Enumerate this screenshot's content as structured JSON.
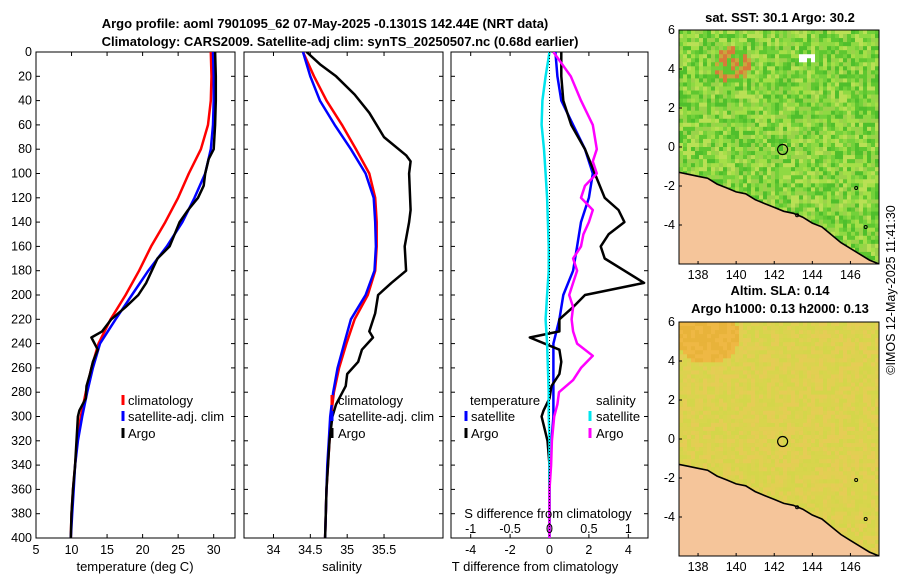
{
  "title_line1": "Argo profile: aoml 7901095_62 07-May-2025 -0.1301S 142.44E (NRT data)",
  "title_line2": "Climatology: CARS2009. Satellite-adj clim: synTS_20250507.nc (0.68d earlier)",
  "timestamp": "©IMOS 12-May-2025 11:41:30",
  "colors": {
    "climatology": "#ff0000",
    "satellite": "#0000ff",
    "argo": "#000000",
    "s_sat": "#00e5ee",
    "s_argo": "#ff00ff",
    "land": "#f5c59a"
  },
  "chart_data": [
    {
      "type": "line",
      "id": "temp",
      "xlabel": "temperature (deg C)",
      "ylabel": "",
      "xlim": [
        5,
        33
      ],
      "ylim": [
        0,
        400
      ],
      "xticks": [
        "5",
        "10",
        "15",
        "20",
        "25",
        "30"
      ],
      "yticks": [
        "0",
        "20",
        "40",
        "60",
        "80",
        "100",
        "120",
        "140",
        "160",
        "180",
        "200",
        "220",
        "240",
        "260",
        "280",
        "300",
        "320",
        "340",
        "360",
        "380",
        "400"
      ],
      "series": [
        {
          "name": "climatology",
          "color": "#ff0000",
          "depth": [
            0,
            20,
            40,
            60,
            80,
            100,
            120,
            140,
            160,
            180,
            200,
            220,
            240,
            260,
            280,
            300,
            320,
            340,
            360,
            380,
            400
          ],
          "values": [
            29.6,
            29.7,
            29.6,
            29.2,
            28.2,
            26.5,
            25.0,
            23.2,
            21.2,
            19.5,
            17.6,
            15.5,
            13.8,
            12.8,
            12.0,
            11.3,
            10.8,
            10.5,
            10.2,
            10.0,
            9.9
          ]
        },
        {
          "name": "satellite-adj. clim",
          "color": "#0000ff",
          "depth": [
            0,
            20,
            40,
            60,
            80,
            100,
            120,
            140,
            160,
            180,
            200,
            220,
            240,
            260,
            280,
            300,
            320,
            340,
            360,
            380,
            400
          ],
          "values": [
            29.9,
            30.0,
            30.0,
            29.9,
            29.6,
            28.8,
            27.3,
            25.6,
            23.4,
            20.8,
            18.5,
            16.2,
            14.0,
            13.0,
            12.2,
            11.5,
            10.9,
            10.5,
            10.3,
            10.1,
            9.9
          ]
        },
        {
          "name": "Argo",
          "color": "#000000",
          "depth": [
            0,
            20,
            40,
            60,
            80,
            88,
            100,
            110,
            120,
            130,
            140,
            150,
            160,
            170,
            180,
            190,
            200,
            210,
            220,
            230,
            235,
            245,
            255,
            265,
            275,
            285,
            295,
            300,
            310,
            320,
            340,
            360,
            380,
            400
          ],
          "values": [
            30.2,
            30.3,
            30.3,
            30.2,
            30.0,
            29.3,
            28.8,
            28.6,
            27.8,
            26.4,
            25.2,
            24.5,
            23.8,
            22.1,
            21.3,
            20.5,
            19.4,
            17.6,
            15.6,
            14.3,
            12.8,
            13.7,
            13.0,
            12.6,
            12.1,
            12.0,
            11.1,
            10.9,
            10.8,
            10.7,
            10.5,
            10.2,
            10.0,
            9.9
          ]
        }
      ],
      "legend": [
        "climatology",
        "satellite-adj. clim",
        "Argo"
      ]
    },
    {
      "type": "line",
      "id": "salt",
      "xlabel": "salinity",
      "xlim": [
        33.6,
        36.3
      ],
      "ylim": [
        0,
        400
      ],
      "xticks": [
        "34",
        "34.5",
        "35",
        "35.5"
      ],
      "series": [
        {
          "name": "climatology",
          "depth": [
            0,
            20,
            40,
            60,
            80,
            100,
            120,
            140,
            160,
            180,
            200,
            220,
            240,
            260,
            280,
            300,
            320,
            340,
            360,
            380,
            400
          ],
          "values": [
            34.4,
            34.55,
            34.72,
            34.93,
            35.12,
            35.3,
            35.38,
            35.4,
            35.4,
            35.38,
            35.28,
            35.1,
            34.99,
            34.89,
            34.82,
            34.78,
            34.76,
            34.74,
            34.72,
            34.71,
            34.7
          ]
        },
        {
          "name": "satellite-adj. clim",
          "depth": [
            0,
            20,
            40,
            60,
            80,
            100,
            120,
            140,
            160,
            180,
            200,
            220,
            240,
            260,
            280,
            300,
            320,
            340,
            360,
            380,
            400
          ],
          "values": [
            34.4,
            34.5,
            34.63,
            34.83,
            35.05,
            35.25,
            35.36,
            35.38,
            35.39,
            35.37,
            35.25,
            35.05,
            34.96,
            34.87,
            34.81,
            34.77,
            34.75,
            34.73,
            34.72,
            34.71,
            34.7
          ]
        },
        {
          "name": "Argo",
          "depth": [
            0,
            10,
            20,
            35,
            50,
            70,
            85,
            90,
            100,
            130,
            140,
            160,
            180,
            190,
            200,
            215,
            230,
            235,
            245,
            255,
            265,
            275,
            290,
            300,
            320,
            340,
            360,
            380,
            400
          ],
          "values": [
            34.45,
            34.63,
            34.85,
            35.1,
            35.3,
            35.5,
            35.8,
            35.86,
            35.84,
            35.86,
            35.84,
            35.78,
            35.8,
            35.6,
            35.42,
            35.38,
            35.3,
            35.35,
            35.2,
            35.15,
            35.0,
            34.98,
            34.85,
            34.8,
            34.76,
            34.74,
            34.72,
            34.71,
            34.7
          ]
        }
      ],
      "legend": [
        "climatology",
        "satellite-adj. clim",
        "Argo"
      ]
    },
    {
      "type": "line",
      "id": "diff",
      "xlabel": "T difference from climatology",
      "xlim": [
        -5,
        5
      ],
      "ylim": [
        0,
        400
      ],
      "xticks": [
        "-4",
        "-2",
        "0",
        "2",
        "4"
      ],
      "top_label": "S difference from climatology",
      "top_ticks": [
        "-1",
        "-0.5",
        "0",
        "0.5",
        "1"
      ],
      "top_tick_values": [
        -1,
        -0.5,
        0,
        0.5,
        1
      ],
      "s_scale": 4,
      "series": [
        {
          "name": "temperature satellite",
          "depth": [
            0,
            20,
            40,
            60,
            80,
            100,
            120,
            140,
            160,
            180,
            200,
            220,
            240,
            260,
            280,
            300,
            320,
            340,
            360,
            380,
            400
          ],
          "values": [
            0.3,
            0.4,
            0.6,
            1.2,
            1.8,
            2.2,
            2.0,
            1.6,
            1.4,
            1.2,
            0.7,
            0.5,
            0.2,
            0.2,
            0.2,
            0.2,
            0.1,
            0.0,
            0.0,
            0.0,
            0.0
          ]
        },
        {
          "name": "temperature Argo",
          "depth": [
            0,
            20,
            40,
            60,
            80,
            100,
            120,
            130,
            140,
            150,
            160,
            170,
            180,
            190,
            200,
            210,
            220,
            230,
            235,
            245,
            255,
            265,
            275,
            285,
            295,
            300,
            320,
            340,
            360,
            380,
            400
          ],
          "values": [
            0.6,
            0.6,
            0.7,
            1.1,
            1.8,
            2.3,
            2.8,
            3.5,
            3.8,
            3.0,
            2.6,
            2.8,
            3.8,
            4.8,
            1.8,
            1.2,
            0.5,
            0.5,
            -1.0,
            0.5,
            0.6,
            0.5,
            0.1,
            0.0,
            -0.3,
            -0.4,
            -0.1,
            0.0,
            0.0,
            0.0,
            0.0
          ]
        },
        {
          "name": "salinity satellite",
          "depth": [
            0,
            20,
            40,
            60,
            80,
            100,
            120,
            140,
            160,
            180,
            200,
            220,
            240,
            260,
            280,
            300,
            320,
            340,
            360,
            380,
            400
          ],
          "values": [
            0.0,
            -0.05,
            -0.09,
            -0.1,
            -0.07,
            -0.05,
            -0.03,
            -0.02,
            -0.01,
            -0.01,
            -0.03,
            -0.05,
            -0.03,
            -0.02,
            -0.01,
            -0.01,
            0.0,
            0.0,
            0.0,
            0.0,
            0.0
          ]
        },
        {
          "name": "salinity Argo",
          "depth": [
            0,
            20,
            40,
            60,
            80,
            90,
            100,
            110,
            120,
            130,
            140,
            150,
            160,
            170,
            180,
            190,
            200,
            210,
            220,
            230,
            240,
            250,
            260,
            270,
            280,
            290,
            300,
            320,
            340,
            360,
            380,
            400
          ],
          "values": [
            0.05,
            0.27,
            0.4,
            0.55,
            0.6,
            0.55,
            0.6,
            0.45,
            0.4,
            0.55,
            0.5,
            0.43,
            0.4,
            0.3,
            0.35,
            0.3,
            0.25,
            0.3,
            0.28,
            0.3,
            0.35,
            0.55,
            0.4,
            0.3,
            0.12,
            0.1,
            0.06,
            0.03,
            0.02,
            0.0,
            0.0,
            0.0
          ]
        }
      ],
      "legend_temperature": {
        "title": "temperature",
        "items": [
          "satellite",
          "Argo"
        ]
      },
      "legend_salinity": {
        "title": "salinity",
        "items": [
          "satellite",
          "Argo"
        ]
      }
    },
    {
      "type": "heatmap",
      "id": "sst",
      "title": "sat. SST: 30.1 Argo: 30.2",
      "xlim": [
        137,
        147.5
      ],
      "ylim": [
        -6,
        6
      ],
      "xticks": [
        "138",
        "140",
        "142",
        "144",
        "146"
      ],
      "yticks": [
        "-4",
        "-2",
        "0",
        "2",
        "4",
        "6"
      ],
      "argo_position": [
        142.44,
        -0.13
      ]
    },
    {
      "type": "heatmap",
      "id": "sla",
      "title_line1": "Altim. SLA: 0.14",
      "title_line2": "Argo h1000: 0.13 h2000: 0.13",
      "xlim": [
        137,
        147.5
      ],
      "ylim": [
        -6,
        6
      ],
      "xticks": [
        "138",
        "140",
        "142",
        "144",
        "146"
      ],
      "yticks": [
        "-4",
        "-2",
        "0",
        "2",
        "4",
        "6"
      ],
      "argo_position": [
        142.44,
        -0.13
      ]
    }
  ]
}
